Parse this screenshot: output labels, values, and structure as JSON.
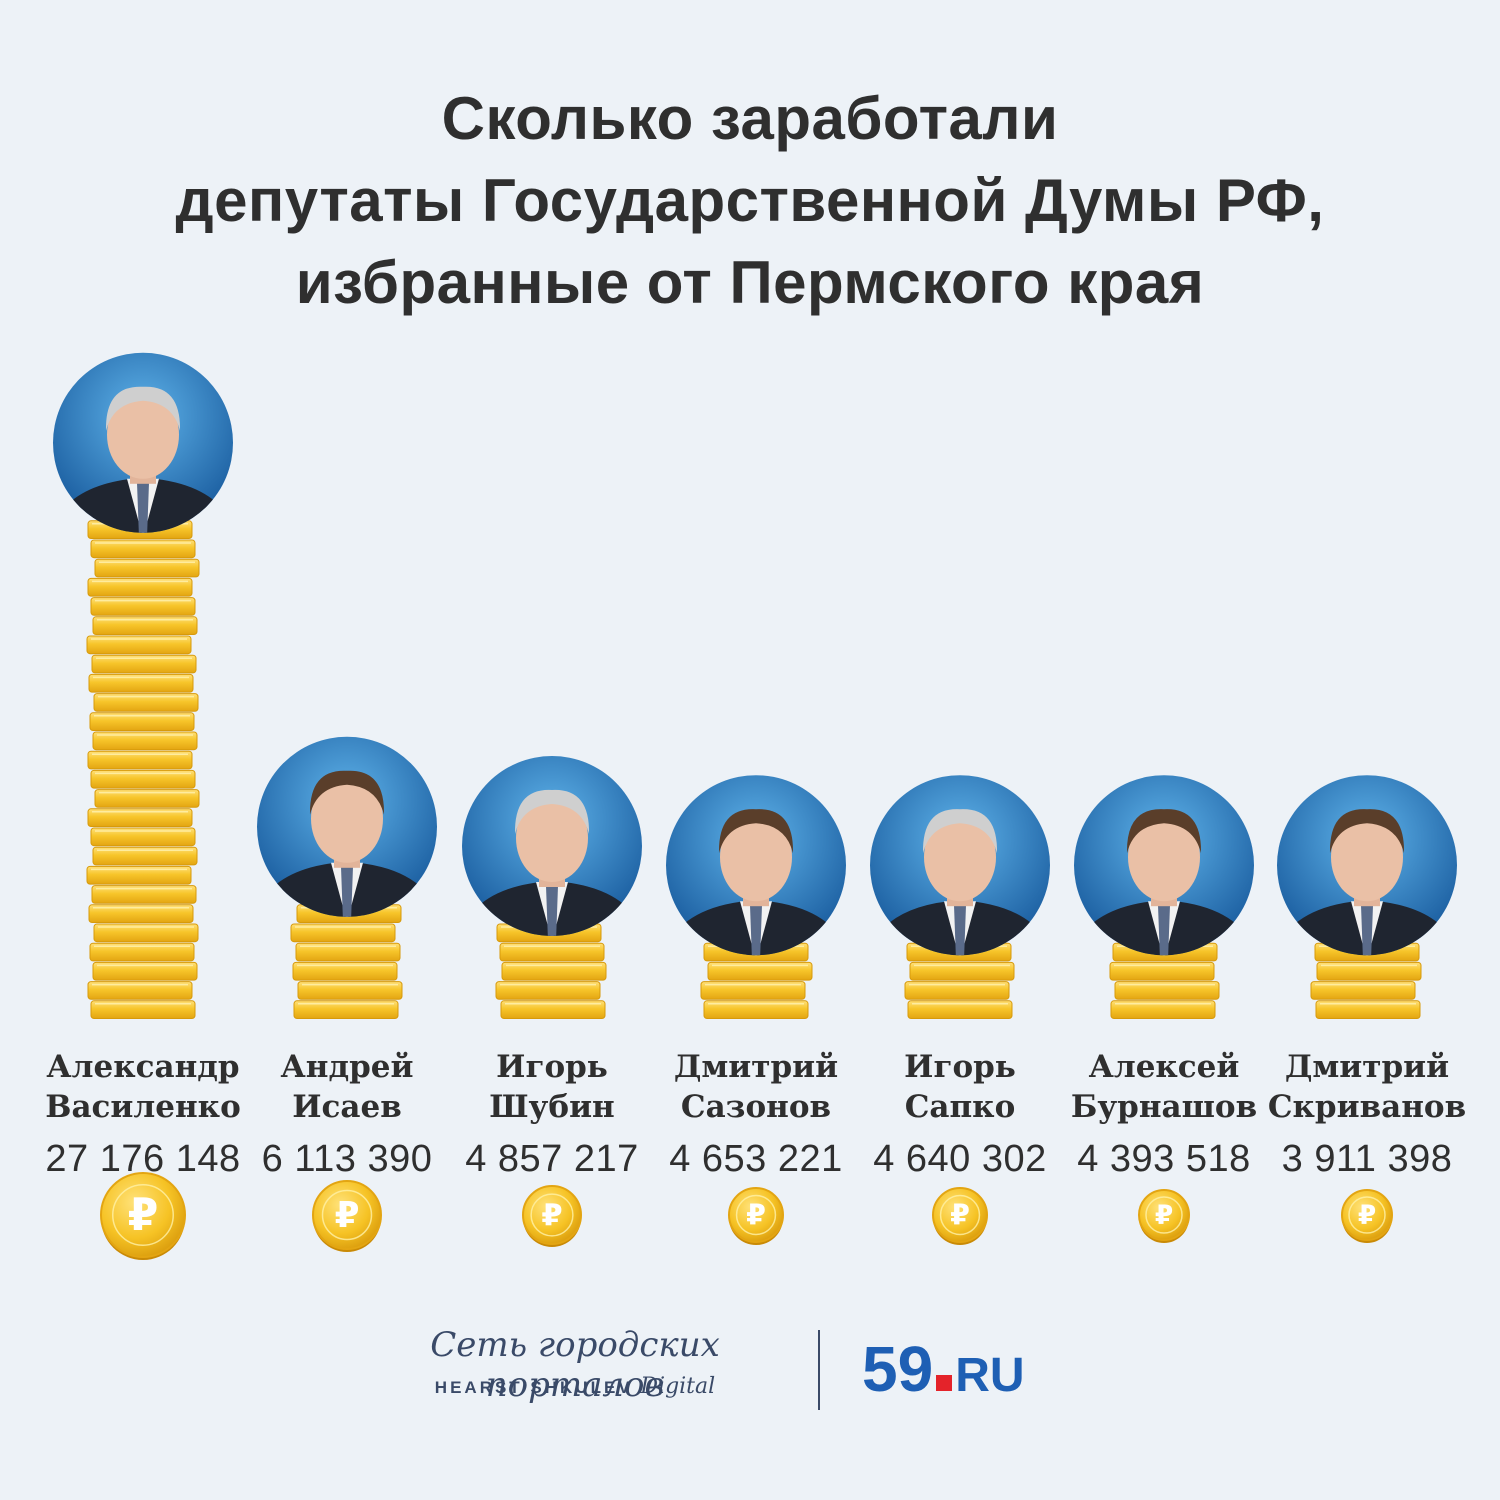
{
  "title_lines": [
    "Сколько заработали",
    "депутаты Государственной Думы РФ,",
    "избранные от Пермского края"
  ],
  "chart_data": {
    "type": "bar",
    "title": "Сколько заработали депутаты Государственной Думы РФ, избранные от Пермского края",
    "categories": [
      "Александр Василенко",
      "Андрей Исаев",
      "Игорь Шубин",
      "Дмитрий Сазонов",
      "Игорь Сапко",
      "Алексей Бурнашов",
      "Дмитрий Скриванов"
    ],
    "first_names": [
      "Александр",
      "Андрей",
      "Игорь",
      "Дмитрий",
      "Игорь",
      "Алексей",
      "Дмитрий"
    ],
    "last_names": [
      "Василенко",
      "Исаев",
      "Шубин",
      "Сазонов",
      "Сапко",
      "Бурнашов",
      "Скриванов"
    ],
    "values": [
      27176148,
      6113390,
      4857217,
      4653221,
      4640302,
      4393518,
      3911398
    ],
    "value_labels": [
      "27 176 148",
      "6 113 390",
      "4 857 217",
      "4 653 221",
      "4 640 302",
      "4 393 518",
      "3 911 398"
    ]
  },
  "colors": {
    "background": "#edf2f7",
    "coin": "#f6c325",
    "coin_dark": "#e0a20e",
    "photo_bg": "#1e6fb8",
    "brand_blue": "#1e5fb4",
    "brand_red": "#e4232a"
  },
  "currency_symbol": "₽",
  "footer": {
    "network": "Сеть городских порталов",
    "hearst_brand": "HEARST SHKULEV",
    "hearst_digital": "Digital",
    "site_number": "59",
    "site_tld": "RU"
  }
}
